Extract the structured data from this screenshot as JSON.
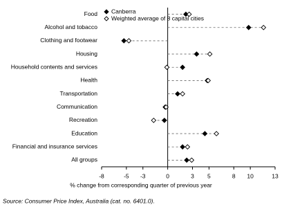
{
  "chart_data": {
    "type": "dot",
    "categories": [
      "Food",
      "Alcohol and tobacco",
      "Clothing and footwear",
      "Housing",
      "Household contents and services",
      "Health",
      "Transportation",
      "Communication",
      "Recreation",
      "Education",
      "Financial and insurance services",
      "All groups"
    ],
    "series": [
      {
        "name": "Canberra",
        "color": "#000000",
        "marker": "filled-diamond",
        "values": [
          2.2,
          9.8,
          -5.3,
          3.5,
          1.8,
          4.8,
          1.2,
          -0.3,
          -0.4,
          4.5,
          1.8,
          2.3
        ]
      },
      {
        "name": "Weighted average of 8 capital cities",
        "color": "#000000",
        "marker": "open-diamond",
        "values": [
          2.6,
          11.6,
          -4.7,
          5.1,
          -0.1,
          4.9,
          1.8,
          -0.2,
          -1.7,
          5.9,
          2.4,
          2.9
        ]
      }
    ],
    "xlim": [
      -8,
      13
    ],
    "xticks": [
      -8,
      -5,
      -3,
      0,
      3,
      5,
      8,
      10,
      13
    ],
    "xlabel": "% change from corresponding quarter of previous year",
    "source": "Source: Consumer Price Index, Australia (cat. no. 6401.0)."
  }
}
